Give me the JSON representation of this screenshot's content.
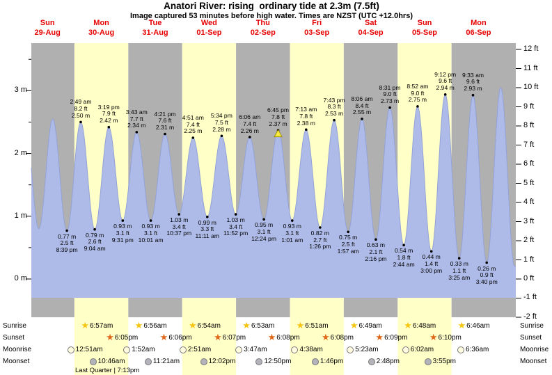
{
  "title": "Anatori River: rising  ordinary tide at 2.3m (7.5ft)",
  "subtitle": "Image captured 53 minutes before high water. Times are NZST (UTC +12.0hrs)",
  "colors": {
    "day_label_red": "#e60000",
    "band_yellow": "#ffffc8",
    "band_gray": "#b0b0b0",
    "tide_fill": "#aebbe8",
    "tide_stroke": "#93a2d8",
    "marker_yellow": "#f6e93c",
    "marker_outline": "#8f8400",
    "sunrise_star": "#f7c411",
    "sunset_star": "#e06818",
    "moonrise_fill": "#fffbe0",
    "moonset_fill": "#b3b3bb",
    "moon_border": "#777777"
  },
  "days": [
    {
      "name": "Sun",
      "date": "29-Aug"
    },
    {
      "name": "Mon",
      "date": "30-Aug"
    },
    {
      "name": "Tue",
      "date": "31-Aug"
    },
    {
      "name": "Wed",
      "date": "01-Sep"
    },
    {
      "name": "Thu",
      "date": "02-Sep"
    },
    {
      "name": "Fri",
      "date": "03-Sep"
    },
    {
      "name": "Sat",
      "date": "04-Sep"
    },
    {
      "name": "Sun",
      "date": "05-Sep"
    },
    {
      "name": "Mon",
      "date": "06-Sep"
    }
  ],
  "y_axis": {
    "left_unit": "m",
    "left_values": [
      3,
      2,
      1,
      0
    ],
    "right_unit": "ft",
    "right_values": [
      12,
      11,
      10,
      9,
      8,
      7,
      6,
      5,
      4,
      3,
      2,
      1,
      0,
      -1,
      -2
    ]
  },
  "chart_data": {
    "type": "area",
    "title": "Anatori River tide height curve",
    "x_start": "Sun 29-Aug",
    "x_end": "Mon 06-Sep",
    "ylabel_left": "metres",
    "ylabel_right": "feet",
    "ylim_m": [
      -0.61,
      3.76
    ],
    "legend": "none",
    "events": [
      {
        "day": 0,
        "time": "2:00 am",
        "type": "high",
        "height_m": "2.50",
        "labeled": false
      },
      {
        "day": 0,
        "time": "8:10 am",
        "type": "low",
        "height_m": "0.80",
        "labeled": false
      },
      {
        "day": 0,
        "time": "2:20 pm",
        "type": "high",
        "height_m": "2.55",
        "labeled": false
      },
      {
        "day": 0,
        "time": "8:39 pm",
        "type": "low",
        "height_m": "0.77",
        "height_ft": "2.5",
        "labeled": true
      },
      {
        "day": 1,
        "time": "2:49 am",
        "type": "high",
        "height_m": "2.50",
        "height_ft": "8.2",
        "labeled": true
      },
      {
        "day": 1,
        "time": "9:04 am",
        "type": "low",
        "height_m": "0.79",
        "height_ft": "2.6",
        "labeled": true
      },
      {
        "day": 1,
        "time": "3:19 pm",
        "type": "high",
        "height_m": "2.42",
        "height_ft": "7.9",
        "labeled": true
      },
      {
        "day": 1,
        "time": "9:31 pm",
        "type": "low",
        "height_m": "0.93",
        "height_ft": "3.1",
        "labeled": true
      },
      {
        "day": 2,
        "time": "3:43 am",
        "type": "high",
        "height_m": "2.34",
        "height_ft": "7.7",
        "labeled": true
      },
      {
        "day": 2,
        "time": "10:01 am",
        "type": "low",
        "height_m": "0.93",
        "height_ft": "3.1",
        "labeled": true
      },
      {
        "day": 2,
        "time": "4:21 pm",
        "type": "high",
        "height_m": "2.31",
        "height_ft": "7.6",
        "labeled": true
      },
      {
        "day": 2,
        "time": "10:37 pm",
        "type": "low",
        "height_m": "1.03",
        "height_ft": "3.4",
        "labeled": true
      },
      {
        "day": 3,
        "time": "4:51 am",
        "type": "high",
        "height_m": "2.25",
        "height_ft": "7.4",
        "labeled": true
      },
      {
        "day": 3,
        "time": "11:11 am",
        "type": "low",
        "height_m": "0.99",
        "height_ft": "3.3",
        "labeled": true
      },
      {
        "day": 3,
        "time": "5:34 pm",
        "type": "high",
        "height_m": "2.28",
        "height_ft": "7.5",
        "labeled": true
      },
      {
        "day": 3,
        "time": "11:52 pm",
        "type": "low",
        "height_m": "1.03",
        "height_ft": "3.4",
        "labeled": true
      },
      {
        "day": 4,
        "time": "6:06 am",
        "type": "high",
        "height_m": "2.26",
        "height_ft": "7.4",
        "labeled": true
      },
      {
        "day": 4,
        "time": "12:24 pm",
        "type": "low",
        "height_m": "0.95",
        "height_ft": "3.1",
        "labeled": true
      },
      {
        "day": 4,
        "time": "6:45 pm",
        "type": "high",
        "height_m": "2.37",
        "height_ft": "7.8",
        "labeled": true,
        "current": true
      },
      {
        "day": 5,
        "time": "1:01 am",
        "type": "low",
        "height_m": "0.93",
        "height_ft": "3.1",
        "labeled": true
      },
      {
        "day": 5,
        "time": "7:13 am",
        "type": "high",
        "height_m": "2.38",
        "height_ft": "7.8",
        "labeled": true
      },
      {
        "day": 5,
        "time": "1:26 pm",
        "type": "low",
        "height_m": "0.82",
        "height_ft": "2.7",
        "labeled": true
      },
      {
        "day": 5,
        "time": "7:43 pm",
        "type": "high",
        "height_m": "2.53",
        "height_ft": "8.3",
        "labeled": true
      },
      {
        "day": 6,
        "time": "1:57 am",
        "type": "low",
        "height_m": "0.75",
        "height_ft": "2.5",
        "labeled": true
      },
      {
        "day": 6,
        "time": "8:06 am",
        "type": "high",
        "height_m": "2.55",
        "height_ft": "8.4",
        "labeled": true
      },
      {
        "day": 6,
        "time": "2:16 pm",
        "type": "low",
        "height_m": "0.63",
        "height_ft": "2.1",
        "labeled": true
      },
      {
        "day": 6,
        "time": "8:31 pm",
        "type": "high",
        "height_m": "2.73",
        "height_ft": "9.0",
        "labeled": true
      },
      {
        "day": 7,
        "time": "2:44 am",
        "type": "low",
        "height_m": "0.54",
        "height_ft": "1.8",
        "labeled": true
      },
      {
        "day": 7,
        "time": "8:52 am",
        "type": "high",
        "height_m": "2.75",
        "height_ft": "9.0",
        "labeled": true
      },
      {
        "day": 7,
        "time": "3:00 pm",
        "type": "low",
        "height_m": "0.44",
        "height_ft": "1.4",
        "labeled": true
      },
      {
        "day": 7,
        "time": "9:12 pm",
        "type": "high",
        "height_m": "2.94",
        "height_ft": "9.6",
        "labeled": true
      },
      {
        "day": 8,
        "time": "3:25 am",
        "type": "low",
        "height_m": "0.33",
        "height_ft": "1.1",
        "labeled": true
      },
      {
        "day": 8,
        "time": "9:33 am",
        "type": "high",
        "height_m": "2.93",
        "height_ft": "9.6",
        "labeled": true
      },
      {
        "day": 8,
        "time": "3:40 pm",
        "type": "low",
        "height_m": "0.26",
        "height_ft": "0.9",
        "labeled": true
      },
      {
        "day": 8,
        "time": "9:55 pm",
        "type": "high",
        "height_m": "3.05",
        "labeled": false
      },
      {
        "day": 9,
        "time": "4:05 am",
        "type": "low",
        "height_m": "0.20",
        "labeled": false
      }
    ],
    "current_marker": {
      "day": 4,
      "time": "6:45 pm",
      "height_m": "2.37",
      "note": "yellow triangle at current high tide"
    }
  },
  "astro": {
    "row_labels": [
      "Sunrise",
      "Sunset",
      "Moonrise",
      "Moonset"
    ],
    "sunrise": [
      {
        "day": 1,
        "time": "6:57am"
      },
      {
        "day": 2,
        "time": "6:56am"
      },
      {
        "day": 3,
        "time": "6:54am"
      },
      {
        "day": 4,
        "time": "6:53am"
      },
      {
        "day": 5,
        "time": "6:51am"
      },
      {
        "day": 6,
        "time": "6:49am"
      },
      {
        "day": 7,
        "time": "6:48am"
      },
      {
        "day": 8,
        "time": "6:46am"
      }
    ],
    "sunset": [
      {
        "day": 1,
        "time": "6:05pm"
      },
      {
        "day": 2,
        "time": "6:06pm"
      },
      {
        "day": 3,
        "time": "6:07pm"
      },
      {
        "day": 4,
        "time": "6:08pm"
      },
      {
        "day": 5,
        "time": "6:08pm"
      },
      {
        "day": 6,
        "time": "6:09pm"
      },
      {
        "day": 7,
        "time": "6:10pm"
      }
    ],
    "moonrise": [
      {
        "day": 1,
        "time": "12:51am"
      },
      {
        "day": 2,
        "time": "1:52am"
      },
      {
        "day": 3,
        "time": "2:51am"
      },
      {
        "day": 4,
        "time": "3:47am"
      },
      {
        "day": 5,
        "time": "4:38am"
      },
      {
        "day": 6,
        "time": "5:23am"
      },
      {
        "day": 7,
        "time": "6:02am"
      },
      {
        "day": 8,
        "time": "6:36am"
      }
    ],
    "moonset": [
      {
        "day": 1,
        "time": "10:46am"
      },
      {
        "day": 2,
        "time": "11:21am"
      },
      {
        "day": 3,
        "time": "12:02pm"
      },
      {
        "day": 4,
        "time": "12:50pm"
      },
      {
        "day": 5,
        "time": "1:46pm"
      },
      {
        "day": 6,
        "time": "2:48pm"
      },
      {
        "day": 7,
        "time": "3:55pm"
      }
    ],
    "moon_phase": "Last Quarter | 7:13pm"
  }
}
